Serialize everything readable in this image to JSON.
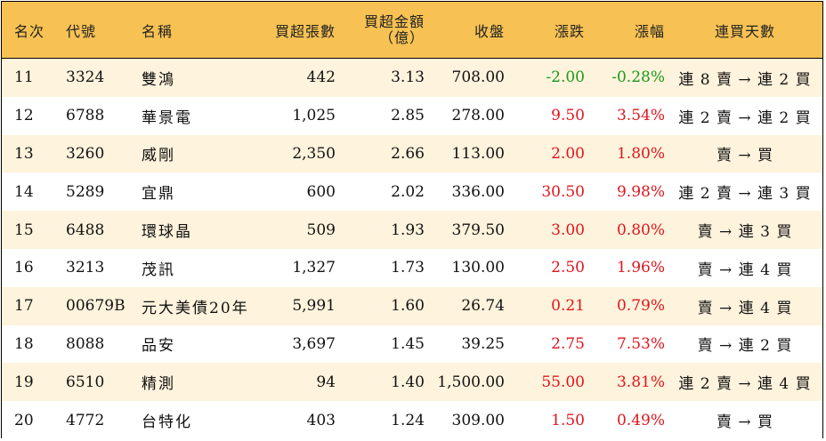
{
  "headers": {
    "rank": "名次",
    "code": "代號",
    "name": "名稱",
    "net_buy_volume": "買超張數",
    "net_buy_amount_line1": "買超金額",
    "net_buy_amount_line2": "（億）",
    "close": "收盤",
    "change": "漲跌",
    "change_pct": "漲幅",
    "streak": "連買天數"
  },
  "colors": {
    "header_bg": "#f7c253",
    "odd_row_bg": "#fef3dc",
    "up": "#e0141e",
    "down": "#1a9a1a"
  },
  "rows": [
    {
      "rank": "11",
      "code": "3324",
      "name": "雙鴻",
      "volume": "442",
      "amount": "3.13",
      "close": "708.00",
      "change": "-2.00",
      "pct": "-0.28%",
      "dir": "down",
      "streak": "連 8 賣 → 連 2 買"
    },
    {
      "rank": "12",
      "code": "6788",
      "name": "華景電",
      "volume": "1,025",
      "amount": "2.85",
      "close": "278.00",
      "change": "9.50",
      "pct": "3.54%",
      "dir": "up",
      "streak": "連 2 賣 → 連 2 買"
    },
    {
      "rank": "13",
      "code": "3260",
      "name": "威剛",
      "volume": "2,350",
      "amount": "2.66",
      "close": "113.00",
      "change": "2.00",
      "pct": "1.80%",
      "dir": "up",
      "streak": "賣 → 買"
    },
    {
      "rank": "14",
      "code": "5289",
      "name": "宜鼎",
      "volume": "600",
      "amount": "2.02",
      "close": "336.00",
      "change": "30.50",
      "pct": "9.98%",
      "dir": "up",
      "streak": "連 2 賣 → 連 3 買"
    },
    {
      "rank": "15",
      "code": "6488",
      "name": "環球晶",
      "volume": "509",
      "amount": "1.93",
      "close": "379.50",
      "change": "3.00",
      "pct": "0.80%",
      "dir": "up",
      "streak": "賣 → 連 3 買"
    },
    {
      "rank": "16",
      "code": "3213",
      "name": "茂訊",
      "volume": "1,327",
      "amount": "1.73",
      "close": "130.00",
      "change": "2.50",
      "pct": "1.96%",
      "dir": "up",
      "streak": "賣 → 連 4 買"
    },
    {
      "rank": "17",
      "code": "00679B",
      "name": "元大美債20年",
      "volume": "5,991",
      "amount": "1.60",
      "close": "26.74",
      "change": "0.21",
      "pct": "0.79%",
      "dir": "up",
      "streak": "賣 → 連 4 買"
    },
    {
      "rank": "18",
      "code": "8088",
      "name": "品安",
      "volume": "3,697",
      "amount": "1.45",
      "close": "39.25",
      "change": "2.75",
      "pct": "7.53%",
      "dir": "up",
      "streak": "賣 → 連 2 買"
    },
    {
      "rank": "19",
      "code": "6510",
      "name": "精測",
      "volume": "94",
      "amount": "1.40",
      "close": "1,500.00",
      "change": "55.00",
      "pct": "3.81%",
      "dir": "up",
      "streak": "連 2 賣 → 連 4 買"
    },
    {
      "rank": "20",
      "code": "4772",
      "name": "台特化",
      "volume": "403",
      "amount": "1.24",
      "close": "309.00",
      "change": "1.50",
      "pct": "0.49%",
      "dir": "up",
      "streak": "賣 → 買"
    }
  ]
}
